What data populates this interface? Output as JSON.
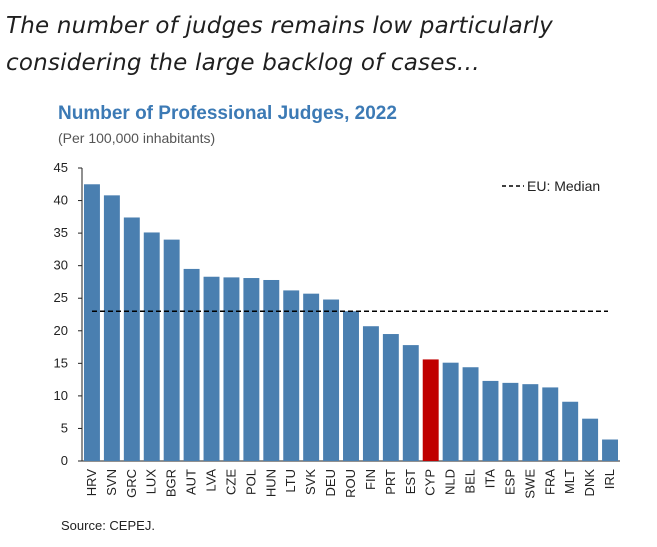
{
  "headline": {
    "line1": "The number of judges remains low particularly",
    "line2": "considering the large backlog of cases…"
  },
  "source": "Source: CEPEJ.",
  "chart_data": {
    "type": "bar",
    "title": "Number of Professional Judges, 2022",
    "subtitle": "(Per 100,000 inhabitants)",
    "xlabel": "",
    "ylabel": "",
    "ylim": [
      0,
      45
    ],
    "yticks": [
      0,
      5,
      10,
      15,
      20,
      25,
      30,
      35,
      40,
      45
    ],
    "grid": false,
    "categories": [
      "HRV",
      "SVN",
      "GRC",
      "LUX",
      "BGR",
      "AUT",
      "LVA",
      "CZE",
      "POL",
      "HUN",
      "LTU",
      "SVK",
      "DEU",
      "ROU",
      "FIN",
      "PRT",
      "EST",
      "CYP",
      "NLD",
      "BEL",
      "ITA",
      "ESP",
      "SWE",
      "FRA",
      "MLT",
      "DNK",
      "IRL"
    ],
    "values": [
      42.5,
      40.8,
      37.4,
      35.1,
      34.0,
      29.5,
      28.3,
      28.2,
      28.1,
      27.8,
      26.2,
      25.7,
      24.8,
      23.0,
      20.7,
      19.5,
      17.8,
      15.6,
      15.1,
      14.4,
      12.3,
      12.0,
      11.8,
      11.3,
      9.1,
      6.5,
      3.3
    ],
    "highlight": "CYP",
    "colors": {
      "bar": "#4a7fb0",
      "highlight": "#c00000",
      "median_line": "#000000"
    },
    "reference_line": {
      "label": "EU: Median",
      "value": 23.0,
      "style": "dashed"
    },
    "legend_position": "top-right"
  }
}
